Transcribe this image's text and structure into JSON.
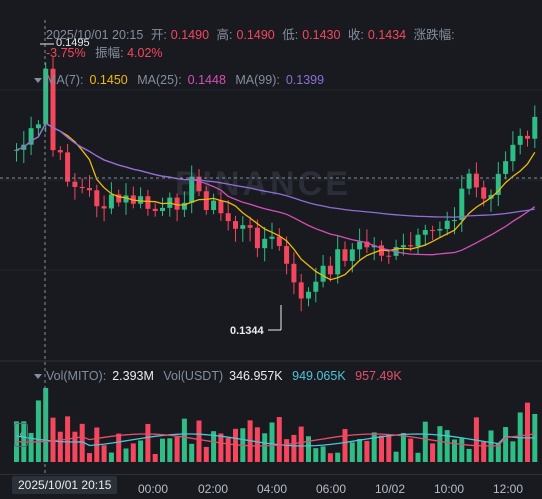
{
  "info": {
    "datetime": "2025/10/01 20:15",
    "open_label": "开:",
    "open": "0.1490",
    "high_label": "高:",
    "high": "0.1490",
    "low_label": "低:",
    "low": "0.1430",
    "close_label": "收:",
    "close": "0.1434",
    "change_label": "涨跌幅:",
    "change": "-3.75%",
    "amplitude_label": "振幅:",
    "amplitude": "4.02%"
  },
  "ma": {
    "ma7_label": "MA(7):",
    "ma7": "0.1450",
    "ma25_label": "MA(25):",
    "ma25": "0.1448",
    "ma99_label": "MA(99):",
    "ma99": "0.1399",
    "colors": {
      "ma7": "#f0b90b",
      "ma25": "#d64fb6",
      "ma99": "#8d6fd6"
    }
  },
  "volume": {
    "vol_label": "Vol(MITO):",
    "vol_mito": "2.393M",
    "vol_usdt_label": "Vol(USDT)",
    "vol_usdt": "346.957K",
    "ma1": "949.065K",
    "ma2": "957.49K",
    "colors": {
      "ma1": "#4fc3d9",
      "ma2": "#e0506b"
    }
  },
  "markers": {
    "high": "0.1495",
    "low": "0.1344"
  },
  "watermark": "BINANCE",
  "time_axis": {
    "crosshair": "2025/10/01 20:15",
    "ticks": [
      "00:00",
      "02:00",
      "04:00",
      "06:00",
      "10/02",
      "10:00",
      "12:00"
    ]
  },
  "colors": {
    "up": "#2ebd85",
    "down": "#f6465d",
    "background": "#181a20"
  }
}
